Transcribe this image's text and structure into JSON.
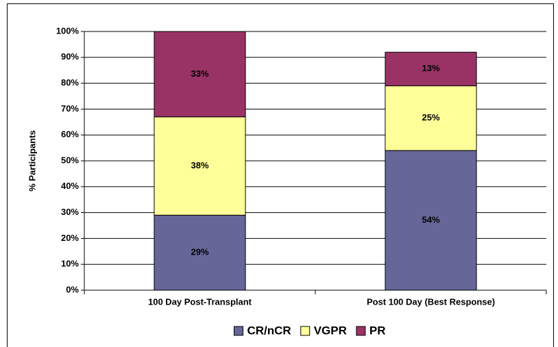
{
  "chart_data": {
    "type": "stacked_bar",
    "y_label": "% Participants",
    "categories": [
      "100 Day Post-Transplant",
      "Post 100 Day (Best Response)"
    ],
    "series": [
      {
        "name": "CR/nCR",
        "color": "#666699",
        "values": [
          29,
          54
        ],
        "value_labels": [
          "29%",
          "54%"
        ]
      },
      {
        "name": "VGPR",
        "color": "#ffff99",
        "values": [
          38,
          25
        ],
        "value_labels": [
          "38%",
          "25%"
        ]
      },
      {
        "name": "PR",
        "color": "#993366",
        "values": [
          33,
          13
        ],
        "value_labels": [
          "33%",
          "13%"
        ]
      }
    ],
    "ylim": [
      0,
      100
    ],
    "yticks": [
      {
        "value": 0,
        "label": "0%"
      },
      {
        "value": 10,
        "label": "10%"
      },
      {
        "value": 20,
        "label": "20%"
      },
      {
        "value": 30,
        "label": "30%"
      },
      {
        "value": 40,
        "label": "40%"
      },
      {
        "value": 50,
        "label": "50%"
      },
      {
        "value": 60,
        "label": "60%"
      },
      {
        "value": 70,
        "label": "70%"
      },
      {
        "value": 80,
        "label": "80%"
      },
      {
        "value": 90,
        "label": "90%"
      },
      {
        "value": 100,
        "label": "100%"
      }
    ],
    "grid": true,
    "legend": "bottom"
  }
}
